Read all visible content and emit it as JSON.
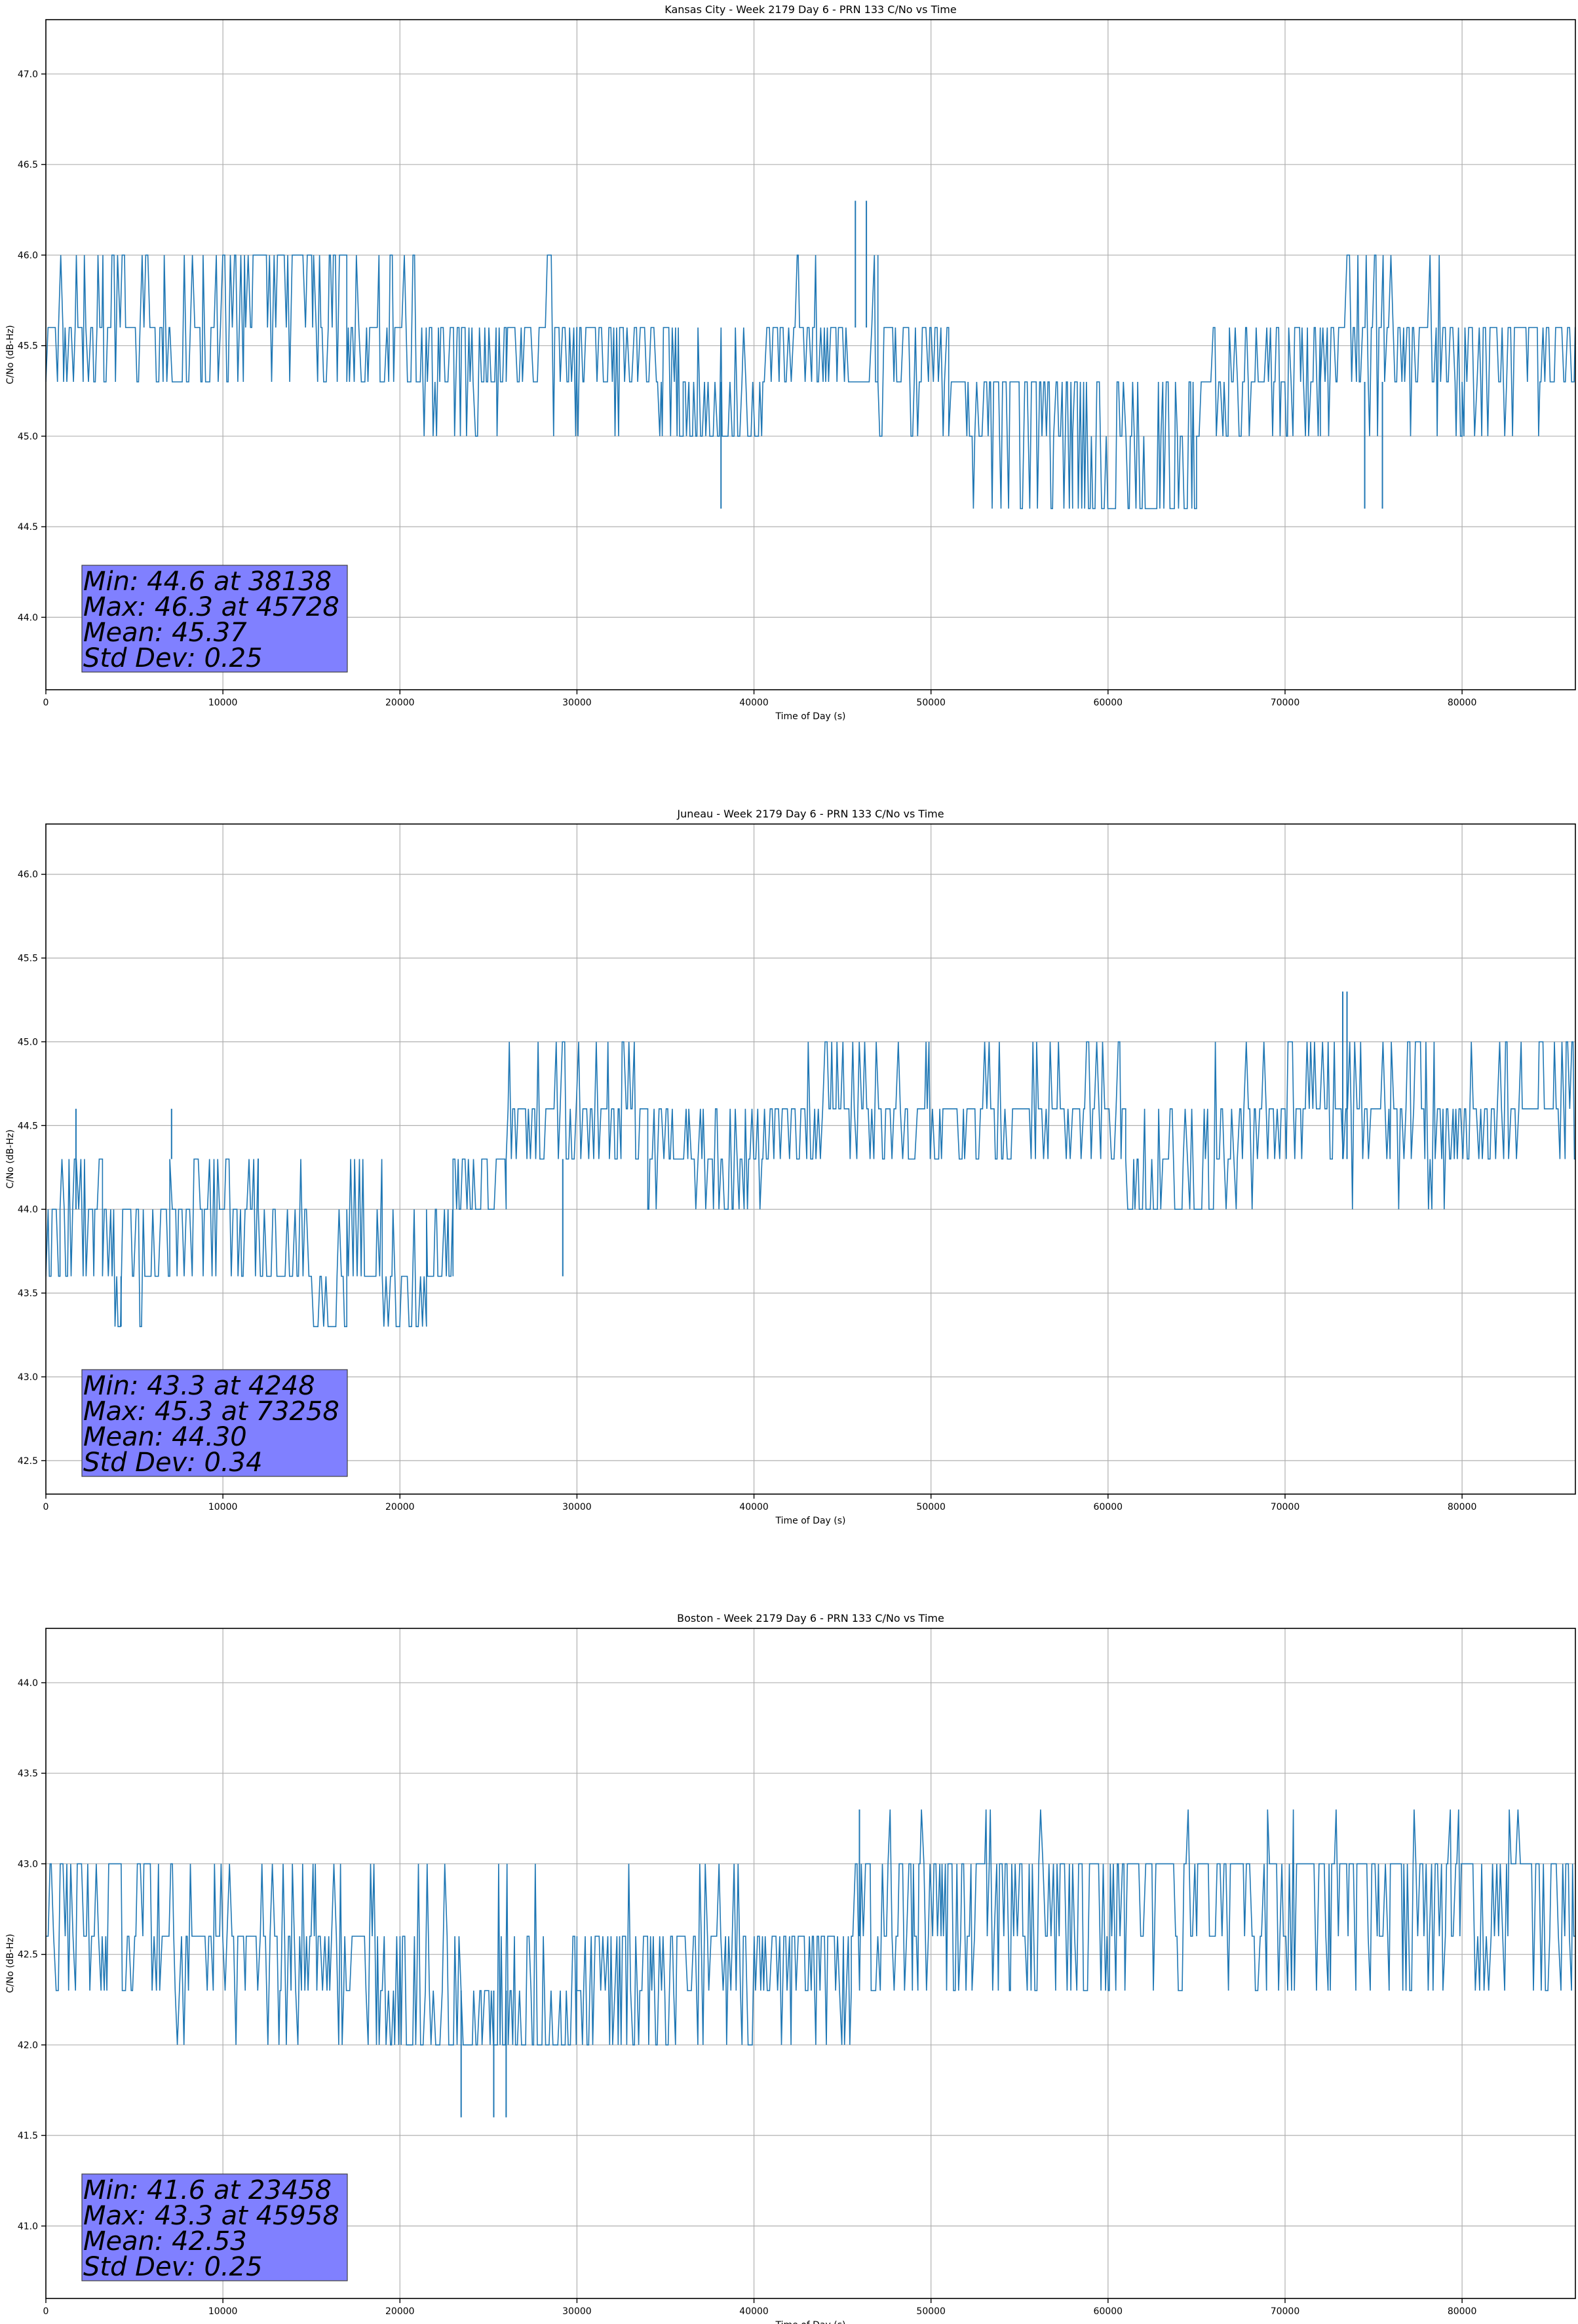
{
  "figure": {
    "background": "#ffffff",
    "series_color": "#1f77b4",
    "stats_box_color": "#8080ff"
  },
  "chart_data": [
    {
      "type": "line",
      "title": "Kansas City - Week 2179 Day 6 - PRN 133 C/No vs Time",
      "xlabel": "Time of Day (s)",
      "ylabel": "C/No (dB-Hz)",
      "xlim": [
        0,
        86400
      ],
      "ylim": [
        43.6,
        47.3
      ],
      "xticks": [
        0,
        10000,
        20000,
        30000,
        40000,
        50000,
        60000,
        70000,
        80000
      ],
      "yticks": [
        44.0,
        44.5,
        45.0,
        45.5,
        46.0,
        46.5,
        47.0
      ],
      "ytick_decimals": 1,
      "grid": true,
      "quantization_step": 0.3,
      "series": [
        {
          "name": "PRN 133 C/No",
          "segments": [
            {
              "x0": 0,
              "x1": 1000,
              "base": 45.3,
              "alts": [
                45.6,
                46.0
              ]
            },
            {
              "x0": 1000,
              "x1": 7000,
              "base": 45.3,
              "alts": [
                45.6,
                46.0
              ]
            },
            {
              "x0": 7000,
              "x1": 9500,
              "base": 45.6,
              "alts": [
                45.3,
                46.0
              ]
            },
            {
              "x0": 9500,
              "x1": 17000,
              "base": 45.6,
              "alts": [
                46.0,
                45.3
              ]
            },
            {
              "x0": 17000,
              "x1": 21000,
              "base": 45.3,
              "alts": [
                45.6,
                46.0
              ]
            },
            {
              "x0": 21000,
              "x1": 26000,
              "base": 45.3,
              "alts": [
                45.6,
                45.0
              ]
            },
            {
              "x0": 26000,
              "x1": 30000,
              "base": 45.3,
              "alts": [
                45.6,
                46.0,
                45.0
              ]
            },
            {
              "x0": 30000,
              "x1": 36000,
              "base": 45.3,
              "alts": [
                45.6,
                45.0
              ]
            },
            {
              "x0": 36000,
              "x1": 40500,
              "base": 45.3,
              "alts": [
                45.0,
                45.6
              ]
            },
            {
              "x0": 40500,
              "x1": 45000,
              "base": 45.3,
              "alts": [
                45.6,
                46.0
              ]
            },
            {
              "x0": 45000,
              "x1": 47000,
              "base": 45.6,
              "alts": [
                45.3,
                46.0
              ]
            },
            {
              "x0": 47000,
              "x1": 51000,
              "base": 45.3,
              "alts": [
                45.6,
                45.0
              ]
            },
            {
              "x0": 51000,
              "x1": 58000,
              "base": 45.0,
              "alts": [
                45.3,
                44.6
              ]
            },
            {
              "x0": 58000,
              "x1": 65000,
              "base": 45.0,
              "alts": [
                44.6,
                45.3
              ]
            },
            {
              "x0": 65000,
              "x1": 72000,
              "base": 45.0,
              "alts": [
                45.3,
                45.6
              ]
            },
            {
              "x0": 72000,
              "x1": 80000,
              "base": 45.3,
              "alts": [
                45.6,
                46.0,
                45.0
              ]
            },
            {
              "x0": 80000,
              "x1": 86400,
              "base": 45.3,
              "alts": [
                45.6,
                45.0
              ]
            }
          ],
          "spikes": [
            {
              "x": 38138,
              "y": 44.6
            },
            {
              "x": 45728,
              "y": 46.3
            },
            {
              "x": 46350,
              "y": 46.3
            },
            {
              "x": 74500,
              "y": 44.6
            },
            {
              "x": 75500,
              "y": 44.6
            }
          ]
        }
      ],
      "stats": {
        "min": 44.6,
        "min_at": 38138,
        "max": 46.3,
        "max_at": 45728,
        "mean": 45.37,
        "std": 0.25,
        "lines": [
          "Min: 44.6 at 38138",
          "Max: 46.3 at 45728",
          "Mean: 45.37",
          "Std Dev: 0.25"
        ]
      },
      "stats_box_location": "lower-left"
    },
    {
      "type": "line",
      "title": "Juneau - Week 2179 Day 6 - PRN 133 C/No vs Time",
      "xlabel": "Time of Day (s)",
      "ylabel": "C/No (dB-Hz)",
      "xlim": [
        0,
        86400
      ],
      "ylim": [
        42.3,
        46.3
      ],
      "xticks": [
        0,
        10000,
        20000,
        30000,
        40000,
        50000,
        60000,
        70000,
        80000
      ],
      "yticks": [
        42.5,
        43.0,
        43.5,
        44.0,
        44.5,
        45.0,
        45.5,
        46.0
      ],
      "ytick_decimals": 1,
      "grid": true,
      "quantization_step": 0.3,
      "series": [
        {
          "name": "PRN 133 C/No",
          "segments": [
            {
              "x0": 0,
              "x1": 800,
              "base": 43.6,
              "alts": [
                44.0
              ]
            },
            {
              "x0": 800,
              "x1": 3200,
              "base": 44.0,
              "alts": [
                44.3,
                43.6
              ]
            },
            {
              "x0": 3200,
              "x1": 5500,
              "base": 43.6,
              "alts": [
                44.0,
                43.3
              ]
            },
            {
              "x0": 5500,
              "x1": 7000,
              "base": 44.0,
              "alts": [
                43.6,
                44.3
              ]
            },
            {
              "x0": 7000,
              "x1": 12000,
              "base": 44.3,
              "alts": [
                44.0,
                43.6
              ]
            },
            {
              "x0": 12000,
              "x1": 15000,
              "base": 44.0,
              "alts": [
                43.6,
                44.3
              ]
            },
            {
              "x0": 15000,
              "x1": 17000,
              "base": 43.6,
              "alts": [
                43.3,
                44.0
              ]
            },
            {
              "x0": 17000,
              "x1": 19000,
              "base": 44.0,
              "alts": [
                43.6,
                44.3
              ]
            },
            {
              "x0": 19000,
              "x1": 21500,
              "base": 43.6,
              "alts": [
                43.3,
                44.0
              ]
            },
            {
              "x0": 21500,
              "x1": 23000,
              "base": 44.0,
              "alts": [
                43.6
              ]
            },
            {
              "x0": 23000,
              "x1": 26000,
              "base": 44.3,
              "alts": [
                44.0
              ]
            },
            {
              "x0": 26000,
              "x1": 34000,
              "base": 44.3,
              "alts": [
                44.6,
                45.0
              ]
            },
            {
              "x0": 34000,
              "x1": 40500,
              "base": 44.0,
              "alts": [
                44.3,
                44.6
              ]
            },
            {
              "x0": 40500,
              "x1": 61000,
              "base": 44.3,
              "alts": [
                44.6,
                45.0
              ]
            },
            {
              "x0": 61000,
              "x1": 66000,
              "base": 44.3,
              "alts": [
                44.0,
                44.6
              ]
            },
            {
              "x0": 66000,
              "x1": 86400,
              "base": 44.3,
              "alts": [
                44.6,
                45.0,
                44.0
              ]
            }
          ],
          "spikes": [
            {
              "x": 4248,
              "y": 43.3
            },
            {
              "x": 1700,
              "y": 44.6
            },
            {
              "x": 7100,
              "y": 44.6
            },
            {
              "x": 29200,
              "y": 43.6
            },
            {
              "x": 73258,
              "y": 45.3
            },
            {
              "x": 73500,
              "y": 45.3
            }
          ]
        }
      ],
      "stats": {
        "min": 43.3,
        "min_at": 4248,
        "max": 45.3,
        "max_at": 73258,
        "mean": 44.3,
        "std": 0.34,
        "lines": [
          "Min: 43.3 at 4248",
          "Max: 45.3 at 73258",
          "Mean: 44.30",
          "Std Dev: 0.34"
        ]
      },
      "stats_box_location": "lower-left"
    },
    {
      "type": "line",
      "title": "Boston - Week 2179 Day 6 - PRN 133 C/No vs Time",
      "xlabel": "Time of Day (s)",
      "ylabel": "C/No (dB-Hz)",
      "xlim": [
        0,
        86400
      ],
      "ylim": [
        40.6,
        44.3
      ],
      "xticks": [
        0,
        10000,
        20000,
        30000,
        40000,
        50000,
        60000,
        70000,
        80000
      ],
      "yticks": [
        41.0,
        41.5,
        42.0,
        42.5,
        43.0,
        43.5,
        44.0
      ],
      "ytick_decimals": 1,
      "grid": true,
      "quantization_step": 0.3,
      "series": [
        {
          "name": "PRN 133 C/No",
          "segments": [
            {
              "x0": 0,
              "x1": 6000,
              "base": 42.6,
              "alts": [
                43.0,
                42.3
              ]
            },
            {
              "x0": 6000,
              "x1": 19000,
              "base": 42.3,
              "alts": [
                42.6,
                43.0,
                42.0
              ]
            },
            {
              "x0": 19000,
              "x1": 30000,
              "base": 42.3,
              "alts": [
                42.0,
                42.6,
                43.0
              ]
            },
            {
              "x0": 30000,
              "x1": 45500,
              "base": 42.3,
              "alts": [
                42.6,
                42.0,
                43.0
              ]
            },
            {
              "x0": 45500,
              "x1": 86400,
              "base": 42.6,
              "alts": [
                43.0,
                42.3,
                43.3
              ]
            }
          ],
          "spikes": [
            {
              "x": 23458,
              "y": 41.6
            },
            {
              "x": 25300,
              "y": 41.6
            },
            {
              "x": 26000,
              "y": 41.6
            },
            {
              "x": 45958,
              "y": 43.3
            }
          ]
        }
      ],
      "stats": {
        "min": 41.6,
        "min_at": 23458,
        "max": 43.3,
        "max_at": 45958,
        "mean": 42.53,
        "std": 0.25,
        "lines": [
          "Min: 41.6 at 23458",
          "Max: 43.3 at 45958",
          "Mean: 42.53",
          "Std Dev: 0.25"
        ]
      },
      "stats_box_location": "lower-left"
    }
  ]
}
